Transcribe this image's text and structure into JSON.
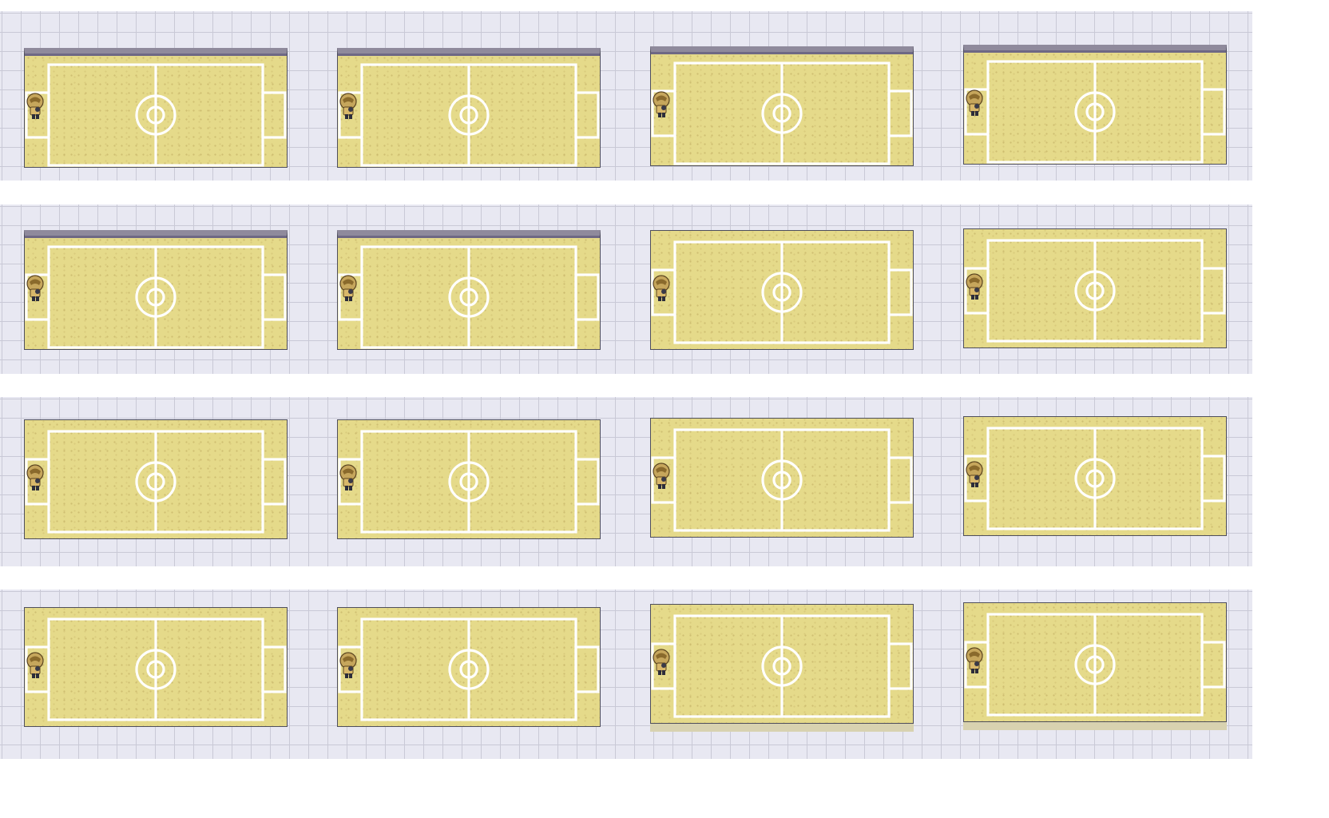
{
  "screen": {
    "description_hidden": false,
    "layout": {
      "rows": 4,
      "columns": 4
    },
    "frames": [
      {
        "row": 1,
        "col": 1,
        "pitch_lines": true,
        "player_sprite": "trainer-sprite-icon",
        "wall_top": true
      },
      {
        "row": 1,
        "col": 2,
        "pitch_lines": true,
        "player_sprite": "trainer-sprite-icon",
        "wall_top": true
      },
      {
        "row": 1,
        "col": 3,
        "pitch_lines": true,
        "player_sprite": "trainer-sprite-icon",
        "wall_top": true
      },
      {
        "row": 1,
        "col": 4,
        "pitch_lines": true,
        "player_sprite": "trainer-sprite-icon",
        "wall_top": true
      },
      {
        "row": 2,
        "col": 1,
        "pitch_lines": true,
        "player_sprite": "trainer-sprite-icon",
        "wall_top": true
      },
      {
        "row": 2,
        "col": 2,
        "pitch_lines": true,
        "player_sprite": "trainer-sprite-icon",
        "wall_top": true
      },
      {
        "row": 2,
        "col": 3,
        "pitch_lines": true,
        "player_sprite": "trainer-sprite-icon",
        "wall_top": false
      },
      {
        "row": 2,
        "col": 4,
        "pitch_lines": true,
        "player_sprite": "trainer-sprite-icon",
        "wall_top": false
      },
      {
        "row": 3,
        "col": 1,
        "pitch_lines": true,
        "player_sprite": "trainer-sprite-icon",
        "wall_top": false
      },
      {
        "row": 3,
        "col": 2,
        "pitch_lines": true,
        "player_sprite": "trainer-sprite-icon",
        "wall_top": false
      },
      {
        "row": 3,
        "col": 3,
        "pitch_lines": true,
        "player_sprite": "trainer-sprite-icon",
        "wall_top": false
      },
      {
        "row": 3,
        "col": 4,
        "pitch_lines": true,
        "player_sprite": "trainer-sprite-icon",
        "wall_top": false
      },
      {
        "row": 4,
        "col": 1,
        "pitch_lines": true,
        "player_sprite": "trainer-sprite-icon",
        "wall_top": false
      },
      {
        "row": 4,
        "col": 2,
        "pitch_lines": true,
        "player_sprite": "trainer-sprite-icon",
        "wall_top": false
      },
      {
        "row": 4,
        "col": 3,
        "pitch_lines": true,
        "player_sprite": "trainer-sprite-icon",
        "wall_top": false
      },
      {
        "row": 4,
        "col": 4,
        "pitch_lines": true,
        "player_sprite": "trainer-sprite-icon",
        "wall_top": false
      }
    ],
    "colors": {
      "floor_tile": "#e8e8f2",
      "tile_grout": "#c9c9d6",
      "pitch_sand": "#e5da8a",
      "pitch_lines": "#ffffff",
      "wall": "#8f8a9c"
    }
  }
}
